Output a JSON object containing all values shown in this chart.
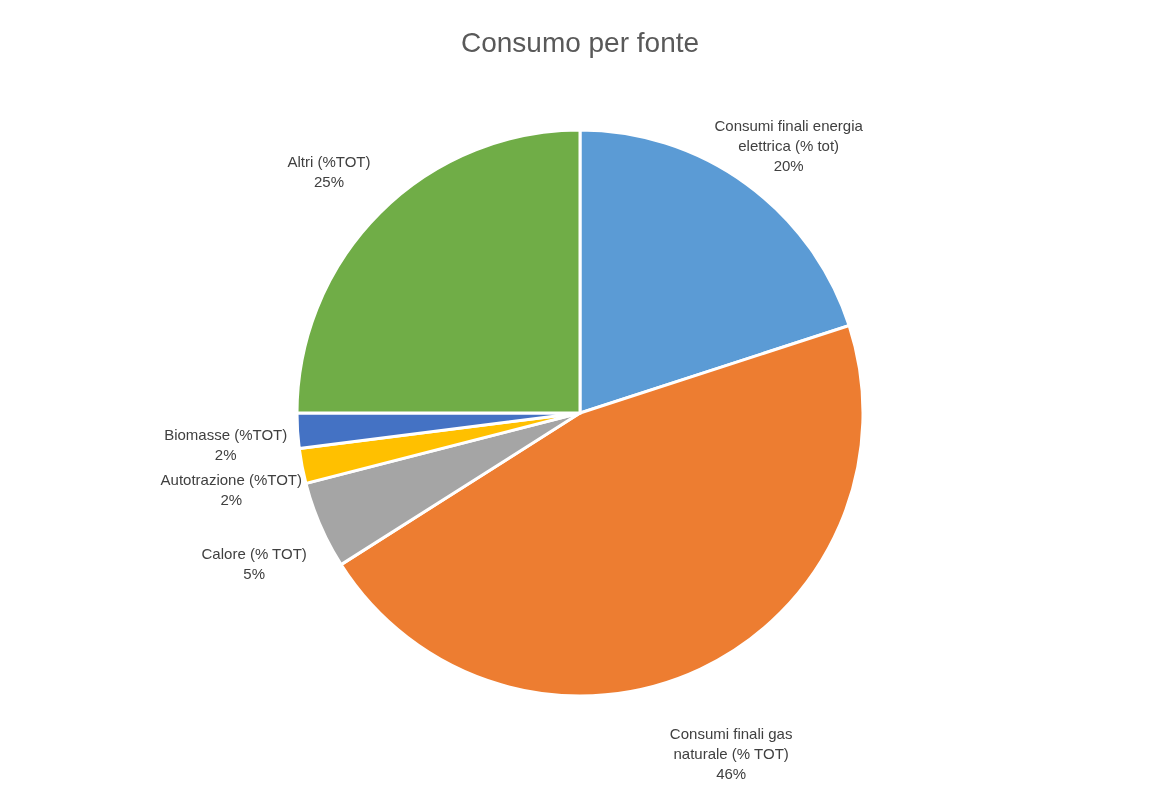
{
  "chart_data": {
    "type": "pie",
    "title": "Consumo per fonte",
    "categories": [
      "Consumi finali energia elettrica (% tot)",
      "Consumi finali gas naturale (% TOT)",
      "Calore (% TOT)",
      "Autotrazione (%TOT)",
      "Biomasse (%TOT)",
      "Altri (%TOT)"
    ],
    "values": [
      20,
      46,
      5,
      2,
      2,
      25
    ],
    "colors": [
      "#5b9bd5",
      "#ed7d31",
      "#a5a5a5",
      "#ffc000",
      "#4472c4",
      "#70ad47"
    ],
    "value_labels": [
      "20%",
      "46%",
      "5%",
      "2%",
      "2%",
      "25%"
    ],
    "legend": false
  }
}
